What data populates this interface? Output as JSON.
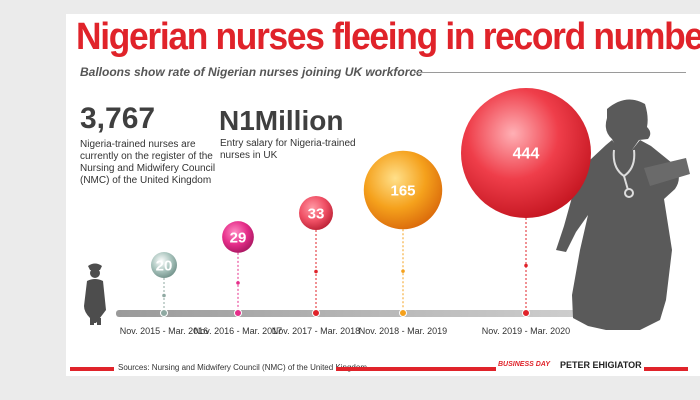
{
  "header": {
    "title": "Nigerian nurses fleeing in record numbers",
    "subtitle": "Balloons show rate of Nigerian nurses joining UK workforce"
  },
  "stats": {
    "registered_value": "3,767",
    "registered_text": "Nigeria-trained nurses are currently on the register of the Nursing and Midwifery Council (NMC) of the United Kingdom",
    "salary_value": "N1Million",
    "salary_text": "Entry salary for Nigeria-trained nurses in UK"
  },
  "footer": {
    "source": "Sources: Nursing and Midwifery Council (NMC) of the United Kingdom",
    "brand": "BUSINESS DAY",
    "author": "PETER EHIGIATOR"
  },
  "colors": {
    "accent_red": "#e0232a",
    "balloon_grey": "#a9c4bd",
    "balloon_pink": "#e62e8a",
    "balloon_red": "#f05065",
    "balloon_orange": "#f5a11c",
    "balloon_big_red": "#ef3e4a",
    "silhouette": "#5a5a5a"
  },
  "chart_data": {
    "type": "bubble",
    "title": "Nigerian nurses fleeing in record numbers",
    "subtitle": "Balloons show rate of Nigerian nurses joining UK workforce",
    "categories": [
      "Nov. 2015 - Mar. 2016",
      "Nov. 2016 - Mar. 2017",
      "Nov. 2017 - Mar. 2018",
      "Nov. 2018 - Mar. 2019",
      "Nov. 2019 - Mar. 2020"
    ],
    "values": [
      20,
      29,
      33,
      165,
      444
    ],
    "value_labels": [
      "20",
      "29",
      "33",
      "165",
      "444"
    ],
    "series_name": "Nigerian nurses joining UK workforce"
  }
}
